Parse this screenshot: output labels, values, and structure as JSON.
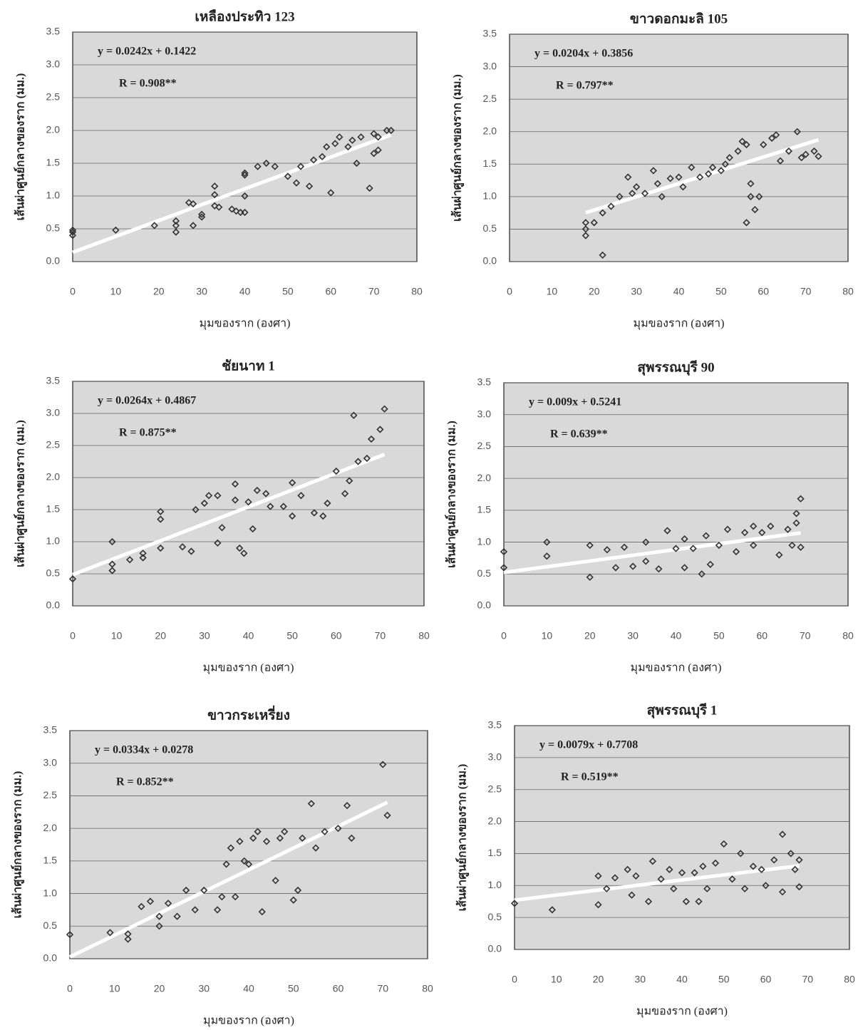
{
  "chart_data": [
    {
      "type": "scatter",
      "title": "เหลืองประทิว 123",
      "equation": "y = 0.0242x + 0.1422",
      "r_label": "R = 0.908**",
      "xlabel": "มุมของราก (องศา)",
      "ylabel": "เส้นผ่าศูนย์กลางของราก (มม.)",
      "trendline": {
        "slope": 0.0242,
        "intercept": 0.1422,
        "color": "#ffffff"
      },
      "color": "#333333",
      "background": "#d9d9d9",
      "grid": true,
      "xlim": [
        0,
        80
      ],
      "ylim": [
        0,
        3.5
      ],
      "xticks": [
        0,
        10,
        20,
        30,
        40,
        50,
        60,
        70,
        80
      ],
      "yticks": [
        {
          "value": 0,
          "label": "0.0"
        },
        0.5,
        {
          "value": 1,
          "label": "1.0"
        },
        1.5,
        {
          "value": 2,
          "label": "2.0"
        },
        2.5,
        {
          "value": 3,
          "label": "3.0"
        },
        3.5
      ],
      "x": [
        0,
        0,
        0,
        10,
        19,
        24,
        24,
        24,
        27,
        28,
        28,
        30,
        30,
        33,
        33,
        33,
        34,
        37,
        38,
        39,
        40,
        40,
        40,
        40,
        43,
        45,
        47,
        50,
        52,
        53,
        55,
        56,
        58,
        59,
        60,
        61,
        62,
        64,
        65,
        66,
        67,
        69,
        70,
        70,
        71,
        71,
        73,
        74
      ],
      "y": [
        0.4,
        0.45,
        0.48,
        0.48,
        0.55,
        0.45,
        0.55,
        0.62,
        0.9,
        0.88,
        0.55,
        0.68,
        0.72,
        1.15,
        0.85,
        1.02,
        0.83,
        0.8,
        0.77,
        0.75,
        0.75,
        1.0,
        1.32,
        1.35,
        1.45,
        1.5,
        1.45,
        1.3,
        1.2,
        1.45,
        1.15,
        1.55,
        1.6,
        1.75,
        1.05,
        1.8,
        1.9,
        1.75,
        1.85,
        1.5,
        1.9,
        1.12,
        1.95,
        1.65,
        1.7,
        1.9,
        2.0,
        2.0
      ]
    },
    {
      "type": "scatter",
      "title": "ขาวดอกมะลิ 105",
      "equation": "y = 0.0204x + 0.3856",
      "r_label": "R = 0.797**",
      "xlabel": "มุมของราก (องศา)",
      "ylabel": "เส้นผ่าศูนย์กลางของราก (มม.)",
      "trendline": {
        "slope": 0.0204,
        "intercept": 0.3856,
        "color": "#ffffff"
      },
      "color": "#333333",
      "background": "#d9d9d9",
      "grid": true,
      "xlim": [
        0,
        80
      ],
      "ylim": [
        0,
        3.5
      ],
      "xticks": [
        0,
        10,
        20,
        30,
        40,
        50,
        60,
        70,
        80
      ],
      "yticks": [
        {
          "value": 0,
          "label": "0.0"
        },
        0.5,
        {
          "value": 1,
          "label": "1.0"
        },
        1.5,
        {
          "value": 2,
          "label": "2.0"
        },
        2.5,
        {
          "value": 3,
          "label": "3.0"
        },
        3.5
      ],
      "x": [
        18,
        18,
        18,
        20,
        22,
        22,
        24,
        26,
        28,
        29,
        30,
        32,
        34,
        35,
        36,
        38,
        40,
        41,
        43,
        45,
        47,
        48,
        50,
        51,
        52,
        54,
        55,
        56,
        56,
        57,
        57,
        58,
        59,
        60,
        62,
        63,
        64,
        66,
        68,
        69,
        70,
        72,
        73
      ],
      "y": [
        0.4,
        0.5,
        0.6,
        0.6,
        0.1,
        0.75,
        0.85,
        1.0,
        1.3,
        1.05,
        1.15,
        1.05,
        1.4,
        1.2,
        1.0,
        1.28,
        1.3,
        1.15,
        1.45,
        1.3,
        1.35,
        1.45,
        1.4,
        1.5,
        1.6,
        1.7,
        1.85,
        1.8,
        0.6,
        1.0,
        1.2,
        0.8,
        1.0,
        1.8,
        1.9,
        1.95,
        1.55,
        1.7,
        2.0,
        1.6,
        1.65,
        1.7,
        1.62
      ]
    },
    {
      "type": "scatter",
      "title": "ชัยนาท 1",
      "equation": "y = 0.0264x + 0.4867",
      "r_label": "R = 0.875**",
      "xlabel": "มุมของราก (องศา)",
      "ylabel": "เส้นผ่าศูนย์กลางของราก (มม.)",
      "trendline": {
        "slope": 0.0264,
        "intercept": 0.4867,
        "color": "#ffffff"
      },
      "color": "#333333",
      "background": "#d9d9d9",
      "grid": true,
      "xlim": [
        0,
        80
      ],
      "ylim": [
        0,
        3.5
      ],
      "xticks": [
        0,
        10,
        20,
        30,
        40,
        50,
        60,
        70,
        80
      ],
      "yticks": [
        {
          "value": 0,
          "label": "0.0"
        },
        0.5,
        {
          "value": 1,
          "label": "1.0"
        },
        1.5,
        {
          "value": 2,
          "label": "2.0"
        },
        2.5,
        {
          "value": 3,
          "label": "3.0"
        },
        3.5
      ],
      "x": [
        0,
        9,
        9,
        9,
        13,
        16,
        16,
        20,
        20,
        20,
        25,
        27,
        28,
        30,
        31,
        33,
        33,
        34,
        37,
        37,
        38,
        39,
        40,
        41,
        42,
        44,
        45,
        48,
        50,
        50,
        52,
        55,
        57,
        58,
        60,
        62,
        63,
        64,
        65,
        67,
        68,
        70,
        71
      ],
      "y": [
        0.42,
        0.55,
        0.65,
        1.0,
        0.72,
        0.75,
        0.82,
        0.9,
        1.35,
        1.47,
        0.92,
        0.85,
        1.5,
        1.6,
        1.72,
        1.72,
        0.98,
        1.22,
        1.65,
        1.9,
        0.9,
        0.82,
        1.62,
        1.2,
        1.8,
        1.75,
        1.55,
        1.55,
        1.92,
        1.4,
        1.72,
        1.45,
        1.4,
        1.6,
        2.1,
        1.75,
        1.95,
        2.97,
        2.25,
        2.3,
        2.6,
        2.75,
        3.07
      ]
    },
    {
      "type": "scatter",
      "title": "สุพรรณบุรี 90",
      "equation": "y = 0.009x + 0.5241",
      "r_label": "R = 0.639**",
      "xlabel": "มุมของราก (องศา)",
      "ylabel": "เส้นผ่าศูนย์กลางของราก (มม.)",
      "trendline": {
        "slope": 0.009,
        "intercept": 0.5241,
        "color": "#ffffff"
      },
      "color": "#333333",
      "background": "#d9d9d9",
      "grid": true,
      "xlim": [
        0,
        80
      ],
      "ylim": [
        0,
        3.5
      ],
      "xticks": [
        0,
        10,
        20,
        30,
        40,
        50,
        60,
        70,
        80
      ],
      "yticks": [
        {
          "value": 0,
          "label": "0.0"
        },
        0.5,
        {
          "value": 1,
          "label": "1.0"
        },
        1.5,
        {
          "value": 2,
          "label": "2.0"
        },
        2.5,
        {
          "value": 3,
          "label": "3.0"
        },
        3.5
      ],
      "x": [
        0,
        0,
        10,
        10,
        20,
        20,
        24,
        26,
        28,
        30,
        33,
        33,
        36,
        38,
        40,
        42,
        42,
        44,
        46,
        47,
        48,
        50,
        52,
        54,
        56,
        58,
        58,
        60,
        62,
        64,
        66,
        67,
        68,
        68,
        69,
        69
      ],
      "y": [
        0.6,
        0.85,
        0.78,
        1.0,
        0.45,
        0.95,
        0.88,
        0.6,
        0.92,
        0.62,
        0.7,
        1.0,
        0.58,
        1.18,
        0.9,
        1.05,
        0.6,
        0.9,
        0.5,
        1.1,
        0.65,
        0.95,
        1.2,
        0.85,
        1.15,
        1.25,
        0.95,
        1.15,
        1.25,
        0.8,
        1.2,
        0.95,
        1.3,
        1.45,
        1.68,
        0.92
      ]
    },
    {
      "type": "scatter",
      "title": "ขาวกระเหรี่ยง",
      "equation": "y = 0.0334x + 0.0278",
      "r_label": "R = 0.852**",
      "xlabel": "มุมของราก (องศา)",
      "ylabel": "เส้นผ่าศูนย์กลางของราก (มม.)",
      "trendline": {
        "slope": 0.0334,
        "intercept": 0.0278,
        "color": "#ffffff"
      },
      "color": "#333333",
      "background": "#d9d9d9",
      "grid": true,
      "xlim": [
        0,
        80
      ],
      "ylim": [
        0,
        3.5
      ],
      "xticks": [
        0,
        10,
        20,
        30,
        40,
        50,
        60,
        70,
        80
      ],
      "yticks": [
        {
          "value": 0,
          "label": "0.0"
        },
        0.5,
        {
          "value": 1,
          "label": "1.0"
        },
        1.5,
        {
          "value": 2,
          "label": "2.0"
        },
        2.5,
        {
          "value": 3,
          "label": "3.0"
        },
        3.5
      ],
      "x": [
        0,
        9,
        13,
        13,
        16,
        18,
        20,
        20,
        22,
        24,
        26,
        28,
        30,
        33,
        34,
        35,
        36,
        37,
        38,
        39,
        40,
        41,
        42,
        43,
        44,
        46,
        47,
        48,
        50,
        51,
        52,
        54,
        55,
        57,
        60,
        62,
        63,
        70,
        71
      ],
      "y": [
        0.37,
        0.4,
        0.3,
        0.38,
        0.8,
        0.88,
        0.5,
        0.65,
        0.85,
        0.65,
        1.05,
        0.75,
        1.05,
        0.75,
        0.95,
        1.45,
        1.7,
        0.95,
        1.8,
        1.5,
        1.45,
        1.85,
        1.95,
        0.72,
        1.8,
        1.2,
        1.85,
        1.95,
        0.9,
        1.05,
        1.85,
        2.38,
        1.7,
        1.95,
        2.0,
        2.35,
        1.85,
        2.98,
        2.2
      ]
    },
    {
      "type": "scatter",
      "title": "สุพรรณบุรี 1",
      "equation": "y = 0.0079x + 0.7708",
      "r_label": "R = 0.519**",
      "xlabel": "มุมของราก (องศา)",
      "ylabel": "เส้นผ่าศูนย์กลางของราก (มม.)",
      "trendline": {
        "slope": 0.0079,
        "intercept": 0.7708,
        "color": "#ffffff"
      },
      "color": "#333333",
      "background": "#d9d9d9",
      "grid": true,
      "xlim": [
        0,
        80
      ],
      "ylim": [
        0,
        3.5
      ],
      "xticks": [
        0,
        10,
        20,
        30,
        40,
        50,
        60,
        70,
        80
      ],
      "yticks": [
        {
          "value": 0,
          "label": "0.0"
        },
        0.5,
        {
          "value": 1,
          "label": "1.0"
        },
        1.5,
        {
          "value": 2,
          "label": "2.0"
        },
        2.5,
        {
          "value": 3,
          "label": "3.0"
        },
        3.5
      ],
      "x": [
        0,
        9,
        20,
        20,
        22,
        24,
        27,
        28,
        29,
        32,
        33,
        35,
        37,
        38,
        40,
        41,
        43,
        44,
        45,
        46,
        48,
        50,
        52,
        54,
        55,
        57,
        59,
        60,
        62,
        64,
        64,
        66,
        67,
        68,
        68
      ],
      "y": [
        0.72,
        0.62,
        0.7,
        1.15,
        0.95,
        1.12,
        1.25,
        0.85,
        1.15,
        0.75,
        1.38,
        1.1,
        1.25,
        0.95,
        1.2,
        0.75,
        1.2,
        0.75,
        1.3,
        0.95,
        1.35,
        1.65,
        1.1,
        1.5,
        0.95,
        1.3,
        1.25,
        1.0,
        1.4,
        1.8,
        0.9,
        1.5,
        1.25,
        1.4,
        0.98
      ]
    }
  ]
}
